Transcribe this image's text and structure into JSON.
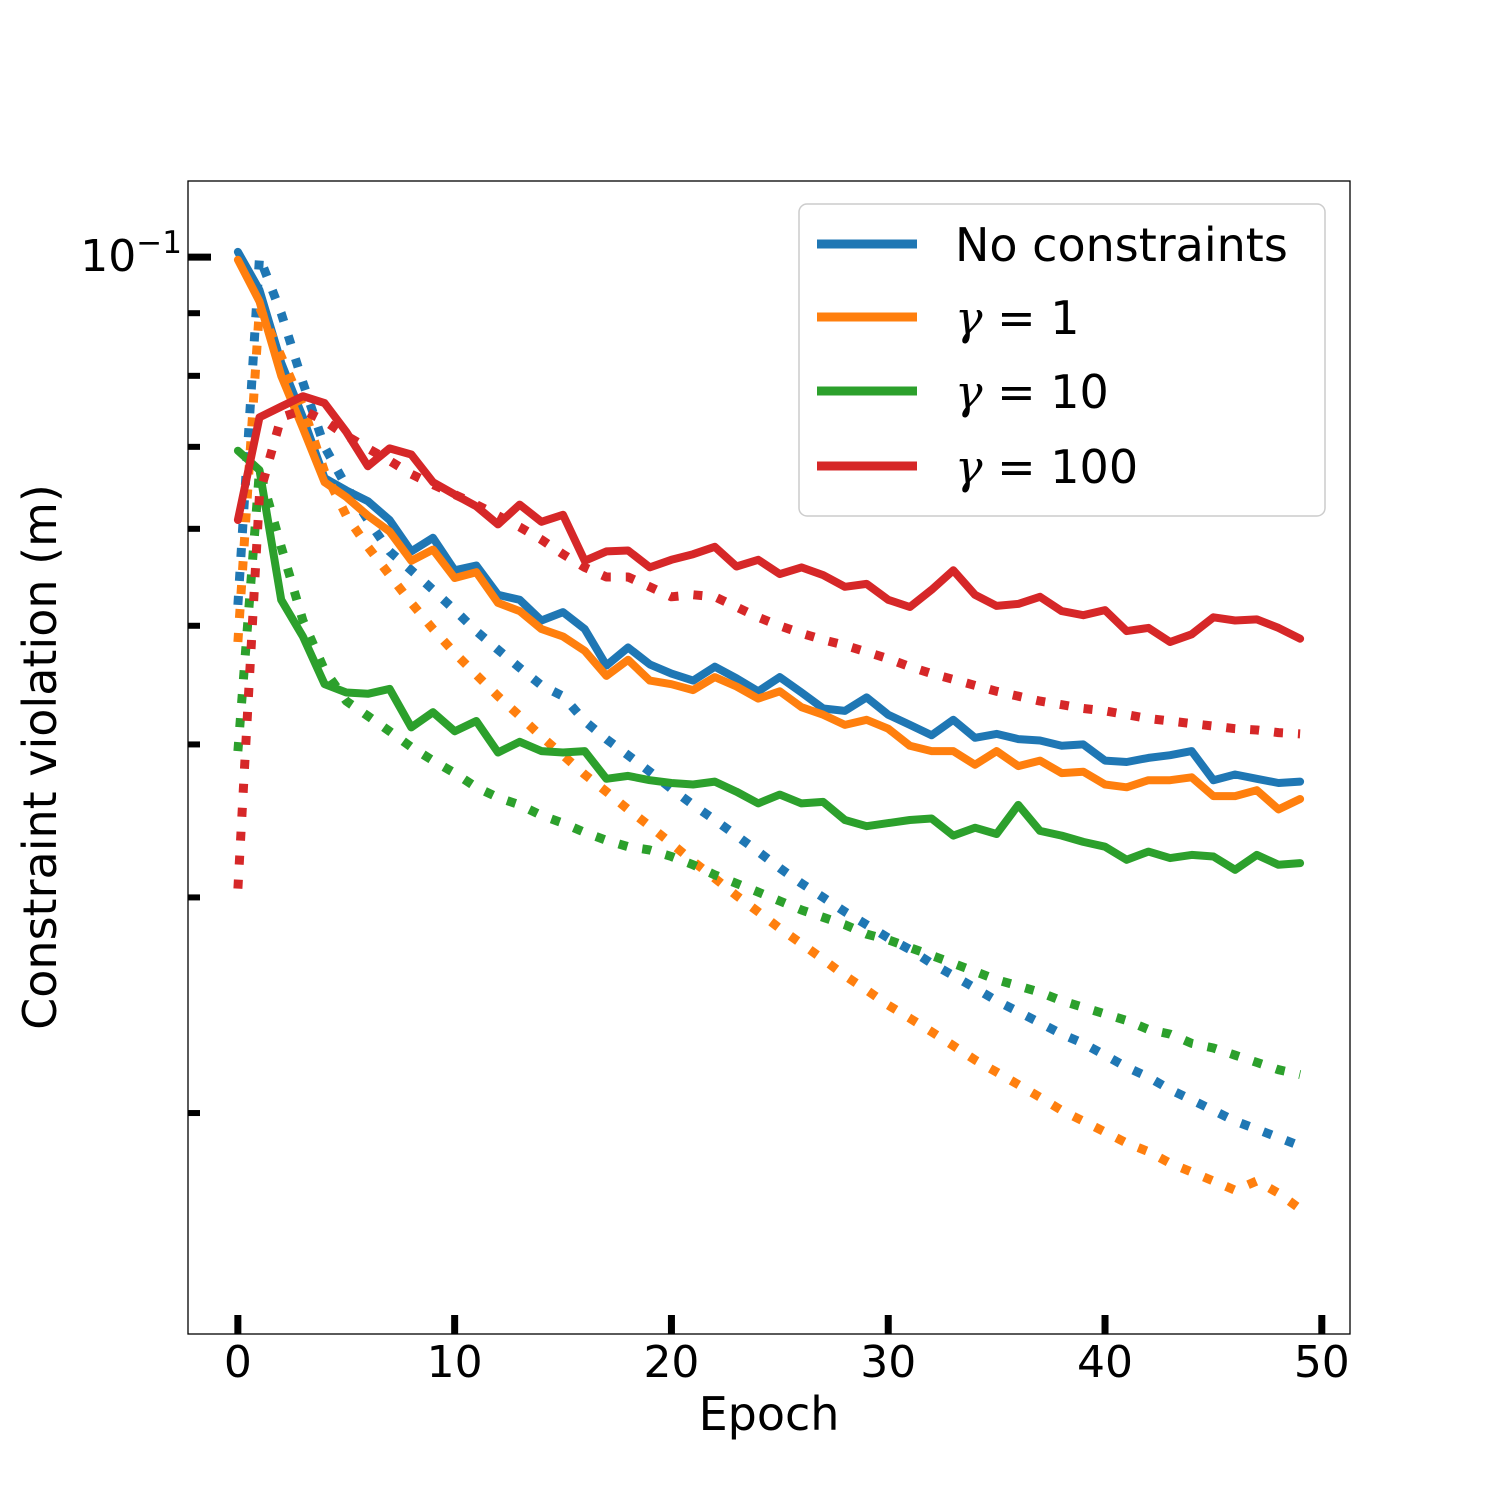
{
  "chart_data": {
    "type": "line",
    "title": "",
    "xlabel": "Epoch",
    "ylabel": "Constraint violation (m)",
    "yscale": "log",
    "xlim": [
      -2.3,
      51.3
    ],
    "ylim": [
      0.0132,
      0.1154
    ],
    "xticks": [
      0,
      10,
      20,
      30,
      40,
      50
    ],
    "xtick_labels": [
      "0",
      "10",
      "20",
      "30",
      "40",
      "50"
    ],
    "ytick_major": [
      {
        "value": 0.1,
        "base": "10",
        "exp": "−1"
      }
    ],
    "yticks_minor": [
      0.09,
      0.08,
      0.07,
      0.06,
      0.05,
      0.04,
      0.03,
      0.02
    ],
    "legend_position": "top-right",
    "x": [
      0,
      1,
      2,
      3,
      4,
      5,
      6,
      7,
      8,
      9,
      10,
      11,
      12,
      13,
      14,
      15,
      16,
      17,
      18,
      19,
      20,
      21,
      22,
      23,
      24,
      25,
      26,
      27,
      28,
      29,
      30,
      31,
      32,
      33,
      34,
      35,
      36,
      37,
      38,
      39,
      40,
      41,
      42,
      43,
      44,
      45,
      46,
      47,
      48,
      49
    ],
    "series": [
      {
        "name": "No constraints",
        "label_text": "No constraints",
        "color": "#1f77b4",
        "style": "solid",
        "values": [
          0.101,
          0.094,
          0.082,
          0.074,
          0.066,
          0.0645,
          0.0632,
          0.061,
          0.0575,
          0.059,
          0.0555,
          0.056,
          0.053,
          0.0525,
          0.0505,
          0.0513,
          0.0497,
          0.0464,
          0.048,
          0.0465,
          0.0457,
          0.0451,
          0.0463,
          0.0453,
          0.0442,
          0.0454,
          0.0441,
          0.0428,
          0.0426,
          0.0437,
          0.0423,
          0.0415,
          0.0407,
          0.0419,
          0.0405,
          0.0408,
          0.0404,
          0.0403,
          0.0399,
          0.04,
          0.0388,
          0.0387,
          0.039,
          0.0392,
          0.0395,
          0.0374,
          0.0378,
          0.0375,
          0.0372,
          0.0373
        ]
      },
      {
        "name": "No constraints (dotted)",
        "color": "#1f77b4",
        "style": "dotted",
        "values": [
          0.052,
          0.1,
          0.09,
          0.079,
          0.07,
          0.065,
          0.061,
          0.0575,
          0.0555,
          0.0535,
          0.0515,
          0.0495,
          0.0478,
          0.0462,
          0.0447,
          0.0438,
          0.0418,
          0.0404,
          0.0392,
          0.038,
          0.0368,
          0.0357,
          0.0347,
          0.0337,
          0.0327,
          0.0317,
          0.0308,
          0.03,
          0.0292,
          0.0285,
          0.0278,
          0.0272,
          0.0265,
          0.0259,
          0.0253,
          0.0247,
          0.0242,
          0.0237,
          0.0232,
          0.0228,
          0.0223,
          0.0218,
          0.0214,
          0.0209,
          0.0205,
          0.0201,
          0.0197,
          0.0194,
          0.0191,
          0.0188
        ]
      },
      {
        "name": "γ = 1",
        "label_var": "γ",
        "label_eq": " = 1",
        "color": "#ff7f0e",
        "style": "solid",
        "values": [
          0.0995,
          0.092,
          0.08,
          0.0725,
          0.0655,
          0.0637,
          0.0615,
          0.0597,
          0.0565,
          0.0577,
          0.0547,
          0.0553,
          0.0522,
          0.0514,
          0.0497,
          0.049,
          0.0477,
          0.0455,
          0.0469,
          0.0451,
          0.0448,
          0.0443,
          0.0454,
          0.0446,
          0.0436,
          0.0442,
          0.0429,
          0.0423,
          0.0415,
          0.0419,
          0.0412,
          0.0399,
          0.0395,
          0.0395,
          0.0385,
          0.0395,
          0.0384,
          0.0388,
          0.0379,
          0.038,
          0.0371,
          0.0369,
          0.0374,
          0.0374,
          0.0376,
          0.0363,
          0.0363,
          0.0367,
          0.0354,
          0.0361
        ]
      },
      {
        "name": "γ = 1 (dotted)",
        "color": "#ff7f0e",
        "style": "dotted",
        "values": [
          0.0485,
          0.091,
          0.083,
          0.0755,
          0.0668,
          0.0615,
          0.058,
          0.055,
          0.0522,
          0.0497,
          0.0475,
          0.0456,
          0.0438,
          0.0422,
          0.0406,
          0.0392,
          0.0378,
          0.0366,
          0.0354,
          0.0343,
          0.0332,
          0.0321,
          0.0311,
          0.0301,
          0.0292,
          0.0283,
          0.0275,
          0.0267,
          0.0259,
          0.0252,
          0.0245,
          0.0239,
          0.0233,
          0.0227,
          0.0221,
          0.0216,
          0.0211,
          0.0206,
          0.0201,
          0.0197,
          0.0193,
          0.0189,
          0.0186,
          0.0182,
          0.0179,
          0.0176,
          0.0173,
          0.0176,
          0.0172,
          0.0167
        ]
      },
      {
        "name": "γ = 10",
        "label_var": "γ",
        "label_eq": " = 10",
        "color": "#2ca02c",
        "style": "solid",
        "values": [
          0.0695,
          0.067,
          0.0525,
          0.049,
          0.0448,
          0.0441,
          0.044,
          0.0444,
          0.0413,
          0.0425,
          0.041,
          0.0418,
          0.0394,
          0.0402,
          0.0395,
          0.0394,
          0.0395,
          0.0375,
          0.0377,
          0.0374,
          0.0372,
          0.0371,
          0.0373,
          0.0366,
          0.0358,
          0.0364,
          0.0358,
          0.0359,
          0.0347,
          0.0343,
          0.0345,
          0.0347,
          0.0348,
          0.0337,
          0.0342,
          0.0338,
          0.0357,
          0.034,
          0.0337,
          0.0333,
          0.033,
          0.0322,
          0.0327,
          0.0323,
          0.0325,
          0.0324,
          0.0316,
          0.0325,
          0.0319,
          0.032
        ]
      },
      {
        "name": "γ = 10 (dotted)",
        "color": "#2ca02c",
        "style": "dotted",
        "values": [
          0.0395,
          0.067,
          0.058,
          0.0505,
          0.046,
          0.0434,
          0.0422,
          0.041,
          0.0398,
          0.0388,
          0.0379,
          0.0369,
          0.0362,
          0.0357,
          0.035,
          0.0345,
          0.0339,
          0.0334,
          0.033,
          0.0328,
          0.0324,
          0.0319,
          0.0313,
          0.0308,
          0.0303,
          0.0298,
          0.0293,
          0.0289,
          0.0285,
          0.028,
          0.0277,
          0.0273,
          0.0269,
          0.0265,
          0.0261,
          0.0257,
          0.0254,
          0.0251,
          0.0247,
          0.0244,
          0.0241,
          0.0238,
          0.0234,
          0.0232,
          0.0228,
          0.0226,
          0.0223,
          0.022,
          0.0217,
          0.0215
        ]
      },
      {
        "name": "γ = 100",
        "label_var": "γ",
        "label_eq": " = 100",
        "color": "#d62728",
        "style": "solid",
        "values": [
          0.061,
          0.074,
          0.0755,
          0.077,
          0.076,
          0.072,
          0.0675,
          0.0698,
          0.069,
          0.0655,
          0.064,
          0.0626,
          0.0605,
          0.0628,
          0.0608,
          0.0616,
          0.0565,
          0.0575,
          0.0576,
          0.0558,
          0.0566,
          0.0572,
          0.058,
          0.0559,
          0.0566,
          0.0551,
          0.0558,
          0.055,
          0.0538,
          0.0541,
          0.0525,
          0.0518,
          0.0535,
          0.0555,
          0.053,
          0.0519,
          0.0521,
          0.0528,
          0.0514,
          0.051,
          0.0515,
          0.0495,
          0.0498,
          0.0485,
          0.0492,
          0.0508,
          0.0505,
          0.0506,
          0.0498,
          0.0488
        ]
      },
      {
        "name": "γ = 100 (dotted)",
        "color": "#d62728",
        "style": "dotted",
        "values": [
          0.0305,
          0.064,
          0.074,
          0.075,
          0.0735,
          0.0715,
          0.0698,
          0.0682,
          0.0665,
          0.0652,
          0.064,
          0.0628,
          0.0615,
          0.0602,
          0.0588,
          0.0572,
          0.0558,
          0.0548,
          0.0548,
          0.0538,
          0.0528,
          0.053,
          0.0528,
          0.0518,
          0.0508,
          0.05,
          0.0493,
          0.0487,
          0.0482,
          0.0476,
          0.047,
          0.0463,
          0.0457,
          0.0452,
          0.0447,
          0.0442,
          0.0438,
          0.0434,
          0.0431,
          0.0428,
          0.0426,
          0.0423,
          0.042,
          0.0418,
          0.0416,
          0.0414,
          0.0412,
          0.0411,
          0.0409,
          0.0408
        ]
      }
    ]
  }
}
